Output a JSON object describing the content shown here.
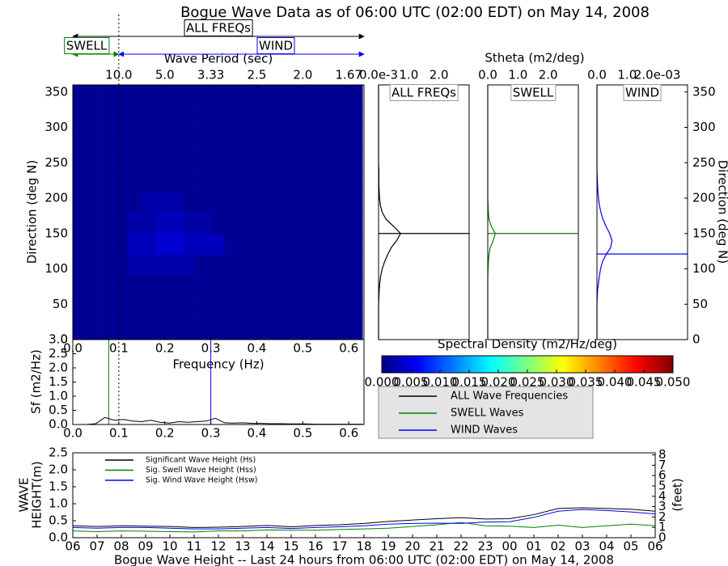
{
  "title": "Bogue Wave Data as of 06:00 UTC (02:00 EDT) on May 14, 2008",
  "annotations": {
    "all": "ALL FREQs",
    "swell": "SWELL",
    "wind": "WIND",
    "separation": 0.1
  },
  "chart_data": [
    {
      "type": "heatmap",
      "xlabel": "Frequency (Hz)",
      "top_xlabel": "Wave Period (sec)",
      "ylabel": "Direction (deg N)",
      "xlim": [
        0,
        0.633
      ],
      "ylim": [
        0,
        360
      ],
      "xticks": [
        {
          "value": 0,
          "label": "0.0"
        },
        0.1,
        0.2,
        0.3,
        0.4,
        0.5,
        0.6
      ],
      "top_xticks": [
        {
          "value": 0.1,
          "label": "10.0"
        },
        {
          "value": 0.2,
          "label": "5.0"
        },
        {
          "value": 0.3,
          "label": "3.33"
        },
        {
          "value": 0.4,
          "label": "2.5"
        },
        {
          "value": 0.5,
          "label": "2.0"
        },
        {
          "value": 0.6,
          "label": "1.67"
        }
      ],
      "yticks": [
        0,
        50,
        100,
        150,
        200,
        250,
        300,
        350
      ],
      "x_edges": [
        0,
        0.03,
        0.06,
        0.09,
        0.12,
        0.15,
        0.18,
        0.21,
        0.24,
        0.27,
        0.3,
        0.33,
        0.36,
        0.39,
        0.42,
        0.45,
        0.48,
        0.51,
        0.54,
        0.57,
        0.6,
        0.63
      ],
      "y_edges": [
        0,
        30,
        60,
        90,
        120,
        150,
        180,
        210,
        240,
        270,
        300,
        330,
        360
      ],
      "values": [
        [
          0.001,
          0.001,
          0.001,
          0.001,
          0.001,
          0.001,
          0.001,
          0.001,
          0.001,
          0.001,
          0.001,
          0.001,
          0.001,
          0.001,
          0.001,
          0.001,
          0.001,
          0.001,
          0.001,
          0.001,
          0.001
        ],
        [
          0.001,
          0.001,
          0.001,
          0.001,
          0.001,
          0.001,
          0.001,
          0.001,
          0.001,
          0.001,
          0.001,
          0.001,
          0.001,
          0.001,
          0.001,
          0.001,
          0.001,
          0.001,
          0.001,
          0.001,
          0.001
        ],
        [
          0.001,
          0.001,
          0.001,
          0.001,
          0.001,
          0.001,
          0.001,
          0.001,
          0.001,
          0.001,
          0.001,
          0.001,
          0.001,
          0.001,
          0.001,
          0.001,
          0.001,
          0.001,
          0.001,
          0.001,
          0.001
        ],
        [
          0.001,
          0.001,
          0.001,
          0.001,
          0.002,
          0.002,
          0.002,
          0.002,
          0.002,
          0.001,
          0.001,
          0.001,
          0.001,
          0.001,
          0.001,
          0.001,
          0.001,
          0.001,
          0.001,
          0.001,
          0.001
        ],
        [
          0.001,
          0.001,
          0.001,
          0.001,
          0.003,
          0.003,
          0.004,
          0.004,
          0.003,
          0.003,
          0.003,
          0.001,
          0.001,
          0.001,
          0.001,
          0.001,
          0.001,
          0.001,
          0.001,
          0.001,
          0.001
        ],
        [
          0.001,
          0.001,
          0.001,
          0.001,
          0.002,
          0.002,
          0.003,
          0.003,
          0.002,
          0.002,
          0.001,
          0.001,
          0.001,
          0.001,
          0.001,
          0.001,
          0.001,
          0.001,
          0.001,
          0.001,
          0.001
        ],
        [
          0.001,
          0.001,
          0.001,
          0.001,
          0.001,
          0.002,
          0.002,
          0.002,
          0.001,
          0.001,
          0.001,
          0.001,
          0.001,
          0.001,
          0.001,
          0.001,
          0.001,
          0.001,
          0.001,
          0.001,
          0.001
        ],
        [
          0.001,
          0.001,
          0.001,
          0.001,
          0.001,
          0.001,
          0.001,
          0.001,
          0.001,
          0.001,
          0.001,
          0.001,
          0.001,
          0.001,
          0.001,
          0.001,
          0.001,
          0.001,
          0.001,
          0.001,
          0.001
        ],
        [
          0.001,
          0.001,
          0.001,
          0.001,
          0.001,
          0.001,
          0.001,
          0.001,
          0.001,
          0.001,
          0.001,
          0.001,
          0.001,
          0.001,
          0.001,
          0.001,
          0.001,
          0.001,
          0.001,
          0.001,
          0.001
        ],
        [
          0.001,
          0.001,
          0.001,
          0.001,
          0.001,
          0.001,
          0.001,
          0.001,
          0.001,
          0.001,
          0.001,
          0.001,
          0.001,
          0.001,
          0.001,
          0.001,
          0.001,
          0.001,
          0.001,
          0.001,
          0.001
        ],
        [
          0.001,
          0.001,
          0.001,
          0.001,
          0.001,
          0.001,
          0.001,
          0.001,
          0.001,
          0.001,
          0.001,
          0.001,
          0.001,
          0.001,
          0.001,
          0.001,
          0.001,
          0.001,
          0.001,
          0.001,
          0.001
        ],
        [
          0.001,
          0.001,
          0.001,
          0.001,
          0.001,
          0.001,
          0.001,
          0.001,
          0.001,
          0.001,
          0.001,
          0.001,
          0.001,
          0.001,
          0.001,
          0.001,
          0.001,
          0.001,
          0.001,
          0.001,
          0.001
        ]
      ]
    },
    {
      "type": "direction",
      "label": "ALL FREQs",
      "color": "#000000",
      "xlim": [
        0,
        3
      ],
      "ylim": [
        0,
        360
      ],
      "xticks": [
        {
          "value": 0,
          "label": "0.0e-3"
        },
        {
          "value": 1,
          "label": "1.0"
        },
        {
          "value": 2,
          "label": "2.0"
        }
      ],
      "directions": [
        0,
        10,
        20,
        30,
        40,
        50,
        60,
        70,
        80,
        90,
        100,
        110,
        120,
        130,
        140,
        150,
        160,
        170,
        180,
        190,
        200,
        210,
        220,
        230,
        240,
        250,
        260,
        270,
        280,
        290,
        300,
        310,
        320,
        330,
        340,
        350,
        360
      ],
      "values": [
        0,
        0,
        0,
        0,
        0,
        0,
        0.01,
        0.02,
        0.04,
        0.07,
        0.12,
        0.2,
        0.3,
        0.42,
        0.6,
        0.73,
        0.5,
        0.25,
        0.12,
        0.06,
        0.03,
        0.02,
        0.01,
        0.01,
        0.01,
        0,
        0,
        0,
        0,
        0,
        0,
        0,
        0,
        0,
        0,
        0,
        0
      ],
      "mean_direction": 150
    },
    {
      "type": "direction",
      "title": "Stheta (m2/deg)",
      "label": "SWELL",
      "color": "#008000",
      "xlim": [
        0,
        3
      ],
      "ylim": [
        0,
        360
      ],
      "xticks": [
        {
          "value": 0,
          "label": "0.0"
        },
        {
          "value": 1,
          "label": "1.0"
        },
        {
          "value": 2,
          "label": "2.0"
        }
      ],
      "directions": [
        0,
        10,
        20,
        30,
        40,
        50,
        60,
        70,
        80,
        90,
        100,
        110,
        120,
        130,
        140,
        150,
        160,
        170,
        180,
        190,
        200,
        210,
        220,
        230,
        240,
        250,
        260,
        270,
        280,
        290,
        300,
        310,
        320,
        330,
        340,
        350,
        360
      ],
      "values": [
        0,
        0,
        0,
        0,
        0,
        0,
        0,
        0,
        0,
        0,
        0.01,
        0.02,
        0.04,
        0.08,
        0.18,
        0.25,
        0.12,
        0.04,
        0.02,
        0.01,
        0,
        0,
        0,
        0,
        0,
        0,
        0,
        0,
        0,
        0,
        0,
        0,
        0,
        0,
        0,
        0,
        0
      ],
      "mean_direction": 150
    },
    {
      "type": "direction",
      "label": "WIND",
      "color": "#0000ff",
      "xlim": [
        0,
        3
      ],
      "ylim": [
        0,
        360
      ],
      "ylabel": "Direction (deg N)",
      "xticks": [
        {
          "value": 0,
          "label": "0.0"
        },
        {
          "value": 1,
          "label": "1.0"
        },
        {
          "value": 2,
          "label": "2.0e-03"
        }
      ],
      "yticks": [
        0,
        50,
        100,
        150,
        200,
        250,
        300,
        350
      ],
      "directions": [
        0,
        10,
        20,
        30,
        40,
        50,
        60,
        70,
        80,
        90,
        100,
        110,
        120,
        130,
        140,
        150,
        160,
        170,
        180,
        190,
        200,
        210,
        220,
        230,
        240,
        250,
        260,
        270,
        280,
        290,
        300,
        310,
        320,
        330,
        340,
        350,
        360
      ],
      "values": [
        0,
        0,
        0,
        0,
        0,
        0,
        0.01,
        0.02,
        0.05,
        0.08,
        0.12,
        0.18,
        0.3,
        0.45,
        0.5,
        0.42,
        0.3,
        0.2,
        0.13,
        0.08,
        0.05,
        0.03,
        0.02,
        0.01,
        0,
        0,
        0,
        0,
        0,
        0,
        0,
        0,
        0,
        0,
        0,
        0,
        0
      ],
      "mean_direction": 121
    },
    {
      "type": "line",
      "ylabel": "Sf (m2/Hz)",
      "color": "#000000",
      "xlim": [
        0,
        0.633
      ],
      "ylim": [
        0,
        3
      ],
      "xticks": [
        {
          "value": 0,
          "label": "0.0"
        },
        0.1,
        0.2,
        0.3,
        0.4,
        0.5,
        0.6
      ],
      "yticks": [
        {
          "value": 0,
          "label": "0.0"
        },
        0.5,
        {
          "value": 1,
          "label": "1.0"
        },
        1.5,
        {
          "value": 2,
          "label": "2.0"
        },
        2.5,
        {
          "value": 3,
          "label": "3.0"
        }
      ],
      "x": [
        0.03,
        0.05,
        0.07,
        0.09,
        0.11,
        0.13,
        0.15,
        0.17,
        0.19,
        0.21,
        0.23,
        0.25,
        0.27,
        0.29,
        0.31,
        0.33,
        0.35,
        0.37,
        0.39,
        0.41,
        0.43,
        0.45,
        0.47,
        0.49,
        0.51,
        0.53,
        0.55,
        0.57,
        0.59,
        0.61,
        0.63
      ],
      "values": [
        0,
        0.03,
        0.25,
        0.15,
        0.18,
        0.12,
        0.1,
        0.15,
        0.08,
        0.05,
        0.1,
        0.08,
        0.1,
        0.12,
        0.22,
        0.06,
        0.05,
        0.06,
        0.04,
        0.04,
        0.03,
        0.03,
        0.02,
        0.02,
        0.02,
        0.01,
        0.01,
        0.01,
        0.01,
        0.01,
        0.01
      ],
      "vlines": [
        {
          "x": 0.078,
          "color": "#008000"
        },
        {
          "x": 0.3,
          "color": "#0000ff"
        }
      ]
    },
    {
      "type": "colorbar",
      "title": "Spectral Density (m2/Hz/deg)",
      "lim": [
        0,
        0.05
      ],
      "ticks": [
        {
          "value": 0,
          "label": "0.000"
        },
        {
          "value": 0.005,
          "label": "0.005"
        },
        {
          "value": 0.01,
          "label": "0.010"
        },
        {
          "value": 0.015,
          "label": "0.015"
        },
        {
          "value": 0.02,
          "label": "0.020"
        },
        {
          "value": 0.025,
          "label": "0.025"
        },
        {
          "value": 0.03,
          "label": "0.030"
        },
        {
          "value": 0.035,
          "label": "0.035"
        },
        {
          "value": 0.04,
          "label": "0.040"
        },
        {
          "value": 0.045,
          "label": "0.045"
        },
        {
          "value": 0.05,
          "label": "0.050"
        }
      ],
      "colors": [
        "#00007f",
        "#0000ff",
        "#007fff",
        "#00ffff",
        "#7fff7f",
        "#ffff00",
        "#ff7f00",
        "#ff0000",
        "#7f0000"
      ]
    },
    {
      "type": "legend",
      "series": [
        {
          "name": "ALL Wave Frequencies",
          "color": "#000000"
        },
        {
          "name": "SWELL Waves",
          "color": "#008000"
        },
        {
          "name": "WIND Waves",
          "color": "#0000ff"
        }
      ]
    },
    {
      "type": "timeseries",
      "xlabel": "Bogue Wave Height -- Last 24 hours from 06:00 UTC (02:00 EDT) on May 14, 2008",
      "ylabel": [
        "WAVE",
        "HEIGHT(m)"
      ],
      "y2label": "(feet)",
      "categories": [
        "06",
        "07",
        "08",
        "09",
        "10",
        "11",
        "12",
        "13",
        "14",
        "15",
        "16",
        "17",
        "18",
        "19",
        "20",
        "21",
        "22",
        "23",
        "00",
        "01",
        "02",
        "03",
        "04",
        "05",
        "06"
      ],
      "ylim": [
        0,
        2.5
      ],
      "yticks": [
        {
          "value": 0,
          "label": "0.0"
        },
        0.5,
        {
          "value": 1,
          "label": "1.0"
        },
        1.5,
        {
          "value": 2,
          "label": "2.0"
        },
        2.5
      ],
      "y2lim": [
        0,
        8.2
      ],
      "y2ticks": [
        0,
        1,
        2,
        3,
        4,
        5,
        6,
        7,
        8
      ],
      "series": [
        {
          "name": "Significant Wave Height (Hs)",
          "color": "#000000",
          "values": [
            0.35,
            0.33,
            0.35,
            0.34,
            0.33,
            0.3,
            0.31,
            0.33,
            0.36,
            0.32,
            0.36,
            0.38,
            0.42,
            0.48,
            0.52,
            0.56,
            0.59,
            0.55,
            0.56,
            0.68,
            0.86,
            0.88,
            0.86,
            0.84,
            0.78
          ]
        },
        {
          "name": "Sig. Swell Wave Height (Hss)",
          "color": "#008000",
          "values": [
            0.2,
            0.18,
            0.2,
            0.19,
            0.18,
            0.17,
            0.2,
            0.2,
            0.23,
            0.22,
            0.22,
            0.24,
            0.26,
            0.28,
            0.33,
            0.38,
            0.45,
            0.35,
            0.34,
            0.3,
            0.37,
            0.3,
            0.35,
            0.4,
            0.35
          ]
        },
        {
          "name": "Sig. Wind Wave Height (Hsw)",
          "color": "#0000ff",
          "values": [
            0.3,
            0.28,
            0.3,
            0.3,
            0.28,
            0.26,
            0.26,
            0.28,
            0.3,
            0.27,
            0.3,
            0.32,
            0.35,
            0.4,
            0.42,
            0.43,
            0.42,
            0.46,
            0.47,
            0.6,
            0.78,
            0.83,
            0.8,
            0.76,
            0.7
          ]
        }
      ]
    }
  ]
}
